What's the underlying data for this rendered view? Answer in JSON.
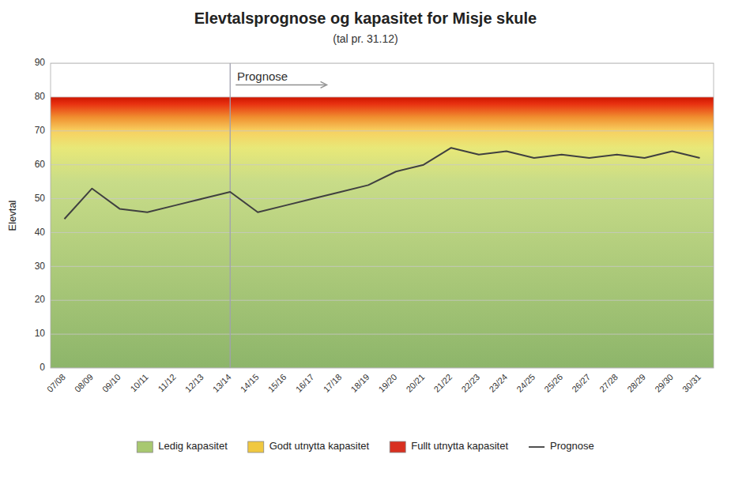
{
  "chart_data": {
    "type": "line",
    "title": "Elevtalsprognose og kapasitet for Misje skule",
    "subtitle": "(tal pr. 31.12)",
    "ylabel": "Elevtal",
    "categories": [
      "07/08",
      "08/09",
      "09/10",
      "10/11",
      "11/12",
      "12/13",
      "13/14",
      "14/15",
      "15/16",
      "16/17",
      "17/18",
      "18/19",
      "19/20",
      "20/21",
      "21/22",
      "22/23",
      "23/24",
      "24/25",
      "25/26",
      "26/27",
      "27/28",
      "28/29",
      "29/30",
      "30/31"
    ],
    "values": [
      44,
      53,
      47,
      46,
      48,
      50,
      52,
      46,
      48,
      50,
      52,
      54,
      58,
      60,
      65,
      63,
      64,
      62,
      63,
      62,
      63,
      62,
      64,
      62
    ],
    "color": "#404040",
    "ylim": [
      0,
      90
    ],
    "yticks": [
      0,
      10,
      20,
      30,
      40,
      50,
      60,
      70,
      80,
      90
    ],
    "grid": true,
    "legend": "bottom",
    "capacity": 80,
    "color_stops": [
      {
        "value": 0,
        "color": "#8db56a"
      },
      {
        "value": 55,
        "color": "#c8dc88"
      },
      {
        "value": 65,
        "color": "#e8e878"
      },
      {
        "value": 70,
        "color": "#f8d060"
      },
      {
        "value": 74,
        "color": "#f09030"
      },
      {
        "value": 78,
        "color": "#e83010"
      },
      {
        "value": 80,
        "color": "#cc1500"
      }
    ],
    "vline": {
      "index": 6,
      "color": "#a0a0b0"
    },
    "annotations": [
      {
        "text": "Prognose",
        "y": 85
      }
    ],
    "legend_items": [
      {
        "label": "Ledig kapasitet",
        "color": "#a8c870"
      },
      {
        "label": "Godt utnytta kapasitet",
        "color": "#f0c840"
      },
      {
        "label": "Fullt utnytta kapasitet",
        "color": "#d83020"
      },
      {
        "label": "Prognose",
        "color": "#505050"
      }
    ]
  }
}
